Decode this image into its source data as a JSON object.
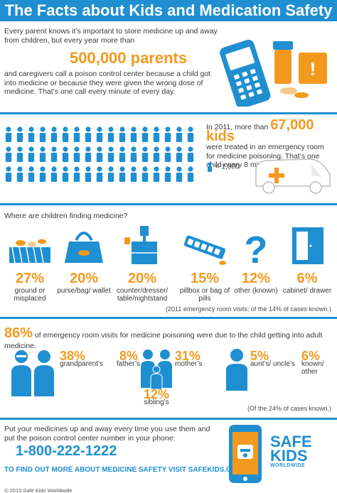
{
  "header": {
    "title": "The Facts about Kids and Medication Safety"
  },
  "section1": {
    "intro": "Every parent knows it’s important to store medicine up and away from children, but every year more than",
    "big_number": "500,000 parents",
    "detail": "and caregivers call a poison control center because a child got into medicine or because they were given the wrong dose of medicine. That’s one call every minute of every day."
  },
  "section2": {
    "stat_prefix": "In 2011, more than",
    "stat_number": "67,000 kids",
    "stat_suffix": "were treated in an emergency room for medicine poisoning. That’s one child every 8 minutes.",
    "legend": "= 1,000"
  },
  "section3": {
    "question": "Where are children finding medicine?",
    "locations": [
      {
        "pct": "27%",
        "label": "ground or misplaced",
        "icon": "pills-ground-icon"
      },
      {
        "pct": "20%",
        "label": "purse/bag/ wallet",
        "icon": "purse-icon"
      },
      {
        "pct": "20%",
        "label": "counter/dresser/ table/nightstand",
        "icon": "nightstand-icon"
      },
      {
        "pct": "15%",
        "label": "pillbox or bag of pills",
        "icon": "pillbox-icon"
      },
      {
        "pct": "12%",
        "label": "other (known)",
        "icon": "question-icon"
      },
      {
        "pct": "6%",
        "label": "cabinet/ drawer",
        "icon": "cabinet-icon"
      }
    ],
    "note": "(2011 emergency room visits; of the 14% of cases known.)"
  },
  "section4": {
    "pct": "86%",
    "text": "of emergency room visits for medicine poisoning were due to the child getting into adult medicine.",
    "relatives": [
      {
        "pct": "38%",
        "label": "grandparent’s"
      },
      {
        "pct": "8%",
        "label": "father’s"
      },
      {
        "pct": "31%",
        "label": "mother’s"
      },
      {
        "pct": "12%",
        "label": "sibling’s"
      },
      {
        "pct": "5%",
        "label": "aunt’s/ uncle’s"
      },
      {
        "pct": "6%",
        "label": "known/ other"
      }
    ],
    "note": "(Of the 24% of cases known.)"
  },
  "section5": {
    "cta": "Put your medicines up and away every time you use them and put the poison control center number in your phone:",
    "phone": "1-800-222-1222",
    "visit": "TO FIND OUT MORE ABOUT MEDICINE SAFETY VISIT SAFEKIDS.ORG",
    "copyright": "© 2013 Safe Kids Worldwide",
    "logo_safe": "SAFE",
    "logo_kids": "KIDS",
    "logo_ww": "WORLDWIDE"
  },
  "colors": {
    "blue": "#1f8fd1",
    "orange": "#f39a1e"
  }
}
